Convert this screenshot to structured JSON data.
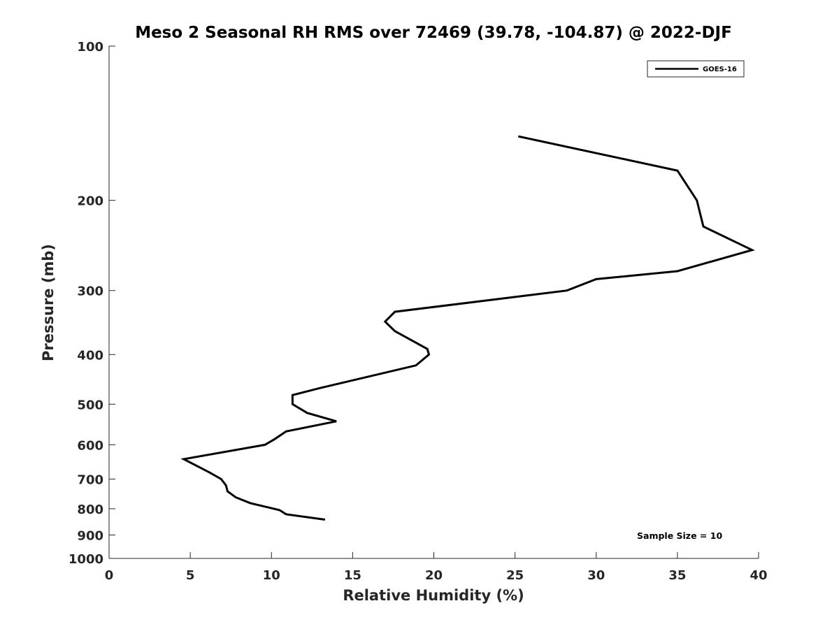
{
  "chart_data": {
    "type": "line",
    "title": "Meso 2 Seasonal RH RMS over 72469 (39.78, -104.87) @ 2022-DJF",
    "xlabel": "Relative Humidity (%)",
    "ylabel": "Pressure (mb)",
    "xlim": [
      0,
      40
    ],
    "ylim": [
      100,
      1000
    ],
    "y_scale": "log",
    "y_reversed": true,
    "xticks": [
      0,
      5,
      10,
      15,
      20,
      25,
      30,
      35,
      40
    ],
    "yticks": [
      100,
      200,
      300,
      400,
      500,
      600,
      700,
      800,
      900,
      1000
    ],
    "grid": false,
    "legend_position": "top-right",
    "line_color": "#000000",
    "series": [
      {
        "name": "GOES-16",
        "points": [
          [
            25.2,
            150
          ],
          [
            35.0,
            175
          ],
          [
            36.2,
            200
          ],
          [
            36.6,
            225
          ],
          [
            39.6,
            250
          ],
          [
            35.0,
            275
          ],
          [
            30.0,
            285
          ],
          [
            28.2,
            300
          ],
          [
            17.6,
            330
          ],
          [
            17.0,
            345
          ],
          [
            17.6,
            360
          ],
          [
            19.6,
            390
          ],
          [
            19.7,
            400
          ],
          [
            18.9,
            420
          ],
          [
            13.0,
            465
          ],
          [
            11.3,
            480
          ],
          [
            11.3,
            500
          ],
          [
            12.2,
            520
          ],
          [
            14.0,
            540
          ],
          [
            10.9,
            565
          ],
          [
            10.2,
            585
          ],
          [
            9.6,
            600
          ],
          [
            4.6,
            640
          ],
          [
            6.2,
            680
          ],
          [
            6.9,
            700
          ],
          [
            7.2,
            720
          ],
          [
            7.3,
            740
          ],
          [
            7.8,
            760
          ],
          [
            8.7,
            780
          ],
          [
            10.5,
            805
          ],
          [
            10.9,
            820
          ],
          [
            13.3,
            840
          ]
        ]
      }
    ],
    "annotation": "Sample Size = 10"
  }
}
